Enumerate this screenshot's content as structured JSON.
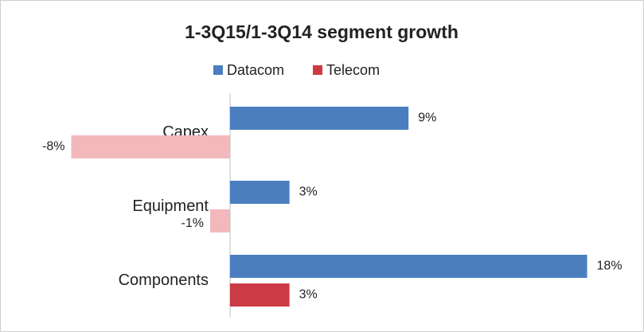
{
  "chart_data": {
    "type": "hbar",
    "title": "1-3Q15/1-3Q14 segment growth",
    "categories": [
      "Capex",
      "Equipment",
      "Components"
    ],
    "series": [
      {
        "name": "Datacom",
        "color": "#4a7ebf",
        "negative_color": "#f2b8bb",
        "values": [
          9,
          3,
          18
        ],
        "value_labels": [
          "9%",
          "3%",
          "18%"
        ]
      },
      {
        "name": "Telecom",
        "color": "#cc3a45",
        "negative_color": "#f2b8bb",
        "values": [
          -8,
          -1,
          3
        ],
        "value_labels": [
          "-8%",
          "-1%",
          "3%"
        ]
      }
    ],
    "xlim": [
      -8.5,
      18.5
    ],
    "legend": "top"
  }
}
